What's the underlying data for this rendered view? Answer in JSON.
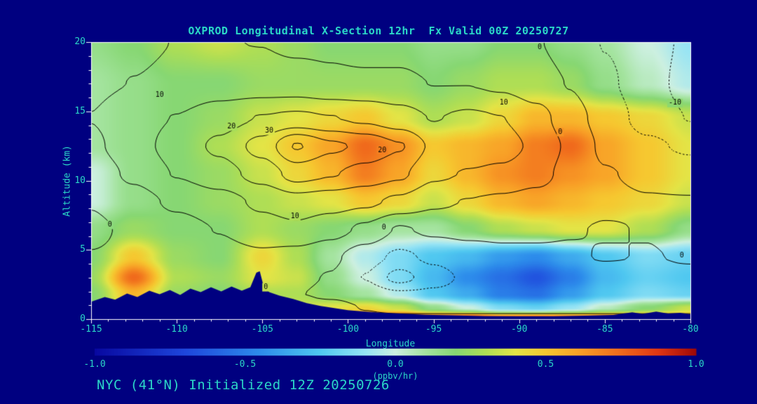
{
  "colors": {
    "background": "#000080",
    "text": "#2bd7c7",
    "frame": "#ffffff",
    "contour_line": "#000000",
    "terrain": "#000080"
  },
  "chart_data": {
    "type": "heatmap",
    "title": "OXPROD Longitudinal X-Section 12hr  Fx Valid 00Z 20250727",
    "init_label": "NYC (41°N) Initialized 12Z 20250726",
    "xlabel": "Longitude",
    "ylabel": "Altitude (km)",
    "xlim": [
      -115,
      -80
    ],
    "ylim": [
      0,
      20
    ],
    "x_ticks": [
      -115,
      -110,
      -105,
      -100,
      -95,
      -90,
      -85,
      -80
    ],
    "y_ticks": [
      0,
      5,
      10,
      15,
      20
    ],
    "colorbar": {
      "label": "(ppbv/hr)",
      "range": [
        -1,
        1
      ],
      "tick_labels": [
        "-1.0",
        "-0.5",
        "0.0",
        "0.5",
        "1.0"
      ],
      "tick_values": [
        -1,
        -0.5,
        0,
        0.5,
        1
      ]
    },
    "colormap": [
      {
        "v": -1.0,
        "rgb": [
          8,
          8,
          160
        ]
      },
      {
        "v": -0.7,
        "rgb": [
          30,
          70,
          220
        ]
      },
      {
        "v": -0.45,
        "rgb": [
          45,
          140,
          235
        ]
      },
      {
        "v": -0.25,
        "rgb": [
          80,
          200,
          240
        ]
      },
      {
        "v": -0.1,
        "rgb": [
          150,
          228,
          245
        ]
      },
      {
        "v": 0.0,
        "rgb": [
          205,
          240,
          225
        ]
      },
      {
        "v": 0.1,
        "rgb": [
          165,
          228,
          160
        ]
      },
      {
        "v": 0.2,
        "rgb": [
          135,
          215,
          115
        ]
      },
      {
        "v": 0.3,
        "rgb": [
          175,
          222,
          85
        ]
      },
      {
        "v": 0.4,
        "rgb": [
          228,
          228,
          70
        ]
      },
      {
        "v": 0.5,
        "rgb": [
          246,
          200,
          48
        ]
      },
      {
        "v": 0.62,
        "rgb": [
          248,
          158,
          38
        ]
      },
      {
        "v": 0.75,
        "rgb": [
          240,
          106,
          28
        ]
      },
      {
        "v": 0.88,
        "rgb": [
          222,
          52,
          18
        ]
      },
      {
        "v": 1.0,
        "rgb": [
          158,
          8,
          8
        ]
      }
    ],
    "fill_field": {
      "units": "ppbv/hr",
      "lons": [
        -115,
        -112.5,
        -110,
        -107.5,
        -105,
        -103,
        -101,
        -99,
        -97,
        -95,
        -93,
        -91,
        -89,
        -87,
        -85,
        -82.5,
        -80
      ],
      "alts": [
        0,
        0.8,
        1.8,
        3,
        4.5,
        6.5,
        8.5,
        10.5,
        12.5,
        14.5,
        17,
        20
      ],
      "values": [
        [
          0.2,
          0.3,
          0.2,
          0.2,
          0.3,
          0.35,
          0.6,
          0.9,
          1.0,
          0.9,
          1.0,
          0.9,
          0.95,
          0.9,
          0.9,
          0.7,
          0.6
        ],
        [
          0.2,
          0.4,
          0.2,
          0.2,
          0.3,
          0.35,
          0.4,
          0.45,
          0.35,
          0.15,
          0.0,
          -0.15,
          -0.2,
          -0.1,
          0.05,
          0.2,
          0.35
        ],
        [
          0.2,
          0.55,
          0.25,
          0.2,
          0.3,
          0.3,
          0.2,
          0.1,
          -0.05,
          -0.25,
          -0.35,
          -0.5,
          -0.55,
          -0.4,
          -0.25,
          -0.15,
          -0.2
        ],
        [
          0.25,
          0.75,
          0.3,
          0.25,
          0.4,
          0.35,
          0.15,
          0.0,
          -0.15,
          -0.3,
          -0.45,
          -0.55,
          -0.65,
          -0.5,
          -0.3,
          -0.2,
          -0.25
        ],
        [
          0.2,
          0.5,
          0.25,
          0.2,
          0.45,
          0.3,
          0.1,
          -0.05,
          -0.15,
          -0.25,
          -0.3,
          -0.4,
          -0.45,
          -0.35,
          -0.25,
          -0.15,
          -0.2
        ],
        [
          0.15,
          0.25,
          0.2,
          0.2,
          0.3,
          0.25,
          0.2,
          0.15,
          0.1,
          0.1,
          0.2,
          0.3,
          0.35,
          0.4,
          0.4,
          0.3,
          0.15
        ],
        [
          0.0,
          0.15,
          0.2,
          0.25,
          0.3,
          0.35,
          0.4,
          0.5,
          0.45,
          0.35,
          0.45,
          0.55,
          0.6,
          0.55,
          0.5,
          0.45,
          0.35
        ],
        [
          0.0,
          0.15,
          0.2,
          0.25,
          0.35,
          0.45,
          0.55,
          0.7,
          0.6,
          0.45,
          0.55,
          0.65,
          0.7,
          0.65,
          0.6,
          0.5,
          0.4
        ],
        [
          0.1,
          0.15,
          0.2,
          0.3,
          0.4,
          0.5,
          0.6,
          0.75,
          0.65,
          0.5,
          0.55,
          0.6,
          0.7,
          0.75,
          0.6,
          0.5,
          0.4
        ],
        [
          0.1,
          0.15,
          0.2,
          0.25,
          0.35,
          0.4,
          0.45,
          0.5,
          0.4,
          0.3,
          0.35,
          0.45,
          0.55,
          0.55,
          0.5,
          0.45,
          0.35
        ],
        [
          0.1,
          0.15,
          0.2,
          0.2,
          0.25,
          0.25,
          0.25,
          0.25,
          0.25,
          0.2,
          0.25,
          0.3,
          0.3,
          0.25,
          0.15,
          0.05,
          -0.05
        ],
        [
          0.15,
          0.2,
          0.3,
          0.35,
          0.3,
          0.25,
          0.2,
          0.2,
          0.2,
          0.15,
          0.15,
          0.2,
          0.2,
          0.15,
          0.1,
          0.0,
          -0.1
        ]
      ]
    },
    "contour_field": {
      "levels": [
        -10,
        -5,
        0,
        5,
        10,
        15,
        20,
        25,
        30
      ],
      "negative_style": "dotted",
      "lons": [
        -115,
        -112.5,
        -110,
        -107.5,
        -105,
        -103,
        -101,
        -99,
        -97,
        -95,
        -93,
        -91,
        -89,
        -87,
        -85,
        -82.5,
        -80
      ],
      "alts": [
        0,
        0.8,
        1.8,
        3,
        4.5,
        6.5,
        8.5,
        10.5,
        12.5,
        14.5,
        17,
        20
      ],
      "values": [
        [
          2,
          2,
          2,
          2,
          3,
          3,
          2,
          1,
          1,
          1,
          1,
          1,
          1,
          1,
          1,
          1,
          1
        ],
        [
          2,
          2,
          2,
          2,
          3,
          3,
          2,
          -0.2,
          -1,
          -1,
          -1,
          -1,
          -1,
          -1,
          -1,
          -1,
          -1
        ],
        [
          2,
          2,
          2,
          2,
          2,
          0.2,
          -1,
          -2,
          -4,
          -4,
          -3,
          -3,
          -3,
          -3,
          -2,
          -2,
          -2
        ],
        [
          1,
          1,
          2,
          2,
          3,
          1,
          -0.3,
          -5.2,
          -12,
          -7,
          -4,
          -3,
          -2,
          -2,
          -2,
          -1,
          -1
        ],
        [
          0.2,
          1,
          2,
          3,
          4,
          3,
          1,
          -3,
          -6,
          -4,
          -2,
          -1,
          -0.8,
          -0.6,
          0.3,
          -0.2,
          0.4
        ],
        [
          -1,
          1,
          3,
          5.2,
          8,
          9,
          7,
          4,
          -0.5,
          1,
          1.2,
          1,
          0.8,
          0.3,
          -0.3,
          0.2,
          1.5
        ],
        [
          0.3,
          3,
          6,
          8,
          11,
          13,
          12,
          11,
          9,
          6,
          4.8,
          4,
          3,
          2,
          1,
          0.3,
          0.3
        ],
        [
          2,
          6,
          10.3,
          13,
          17,
          22,
          20.4,
          18,
          16,
          11,
          9.7,
          9,
          7,
          3,
          0.3,
          -1,
          -2
        ],
        [
          4,
          8,
          12,
          16,
          22,
          30.5,
          26,
          24,
          20.5,
          14,
          13,
          12,
          9,
          4,
          -1,
          -4,
          -6
        ],
        [
          5.1,
          8,
          10.2,
          13,
          15.3,
          16,
          15.2,
          14,
          12,
          9.8,
          11,
          10.1,
          7,
          2,
          -2,
          -7,
          -10.2
        ],
        [
          4,
          5.1,
          6,
          7,
          7,
          7,
          6,
          6,
          6,
          4.9,
          4.9,
          4,
          2,
          -0.2,
          -4,
          -8,
          -12
        ],
        [
          3,
          4,
          5.1,
          5.15,
          4.9,
          4,
          4,
          3,
          3,
          2,
          2,
          1,
          0.3,
          -2,
          -5.2,
          -8,
          -11
        ]
      ]
    },
    "contour_labels": [
      {
        "lon": -111.0,
        "alt": 16.2,
        "text": "10"
      },
      {
        "lon": -106.8,
        "alt": 13.9,
        "text": "20"
      },
      {
        "lon": -104.6,
        "alt": 13.6,
        "text": "30"
      },
      {
        "lon": -98.0,
        "alt": 12.2,
        "text": "20"
      },
      {
        "lon": -90.9,
        "alt": 15.6,
        "text": "10"
      },
      {
        "lon": -87.6,
        "alt": 13.5,
        "text": "0"
      },
      {
        "lon": -80.9,
        "alt": 15.6,
        "text": "-10"
      },
      {
        "lon": -103.1,
        "alt": 7.4,
        "text": "10"
      },
      {
        "lon": -97.9,
        "alt": 6.6,
        "text": "0"
      },
      {
        "lon": -104.8,
        "alt": 2.3,
        "text": "0"
      },
      {
        "lon": -80.5,
        "alt": 4.6,
        "text": "0"
      },
      {
        "lon": -113.9,
        "alt": 6.8,
        "text": "0"
      },
      {
        "lon": -88.8,
        "alt": 19.6,
        "text": "0"
      }
    ],
    "terrain_profile": [
      [
        -115,
        1.25
      ],
      [
        -114.2,
        1.6
      ],
      [
        -113.6,
        1.4
      ],
      [
        -112.9,
        1.85
      ],
      [
        -112.3,
        1.6
      ],
      [
        -111.6,
        2.05
      ],
      [
        -111,
        1.8
      ],
      [
        -110.4,
        2.1
      ],
      [
        -109.8,
        1.75
      ],
      [
        -109.2,
        2.2
      ],
      [
        -108.6,
        1.95
      ],
      [
        -108,
        2.3
      ],
      [
        -107.4,
        2.0
      ],
      [
        -106.8,
        2.35
      ],
      [
        -106.2,
        2.05
      ],
      [
        -105.7,
        2.3
      ],
      [
        -105.35,
        3.35
      ],
      [
        -105.15,
        3.45
      ],
      [
        -104.95,
        2.5
      ],
      [
        -104.6,
        1.95
      ],
      [
        -104,
        1.7
      ],
      [
        -103.2,
        1.45
      ],
      [
        -102.4,
        1.15
      ],
      [
        -101.6,
        0.95
      ],
      [
        -100.8,
        0.8
      ],
      [
        -100,
        0.65
      ],
      [
        -99,
        0.55
      ],
      [
        -98,
        0.45
      ],
      [
        -97,
        0.4
      ],
      [
        -95.5,
        0.32
      ],
      [
        -94,
        0.28
      ],
      [
        -92,
        0.22
      ],
      [
        -90,
        0.2
      ],
      [
        -88,
        0.2
      ],
      [
        -86,
        0.25
      ],
      [
        -84.5,
        0.3
      ],
      [
        -83.4,
        0.5
      ],
      [
        -82.8,
        0.38
      ],
      [
        -82,
        0.55
      ],
      [
        -81.3,
        0.4
      ],
      [
        -80.6,
        0.45
      ],
      [
        -80,
        0.35
      ]
    ]
  }
}
